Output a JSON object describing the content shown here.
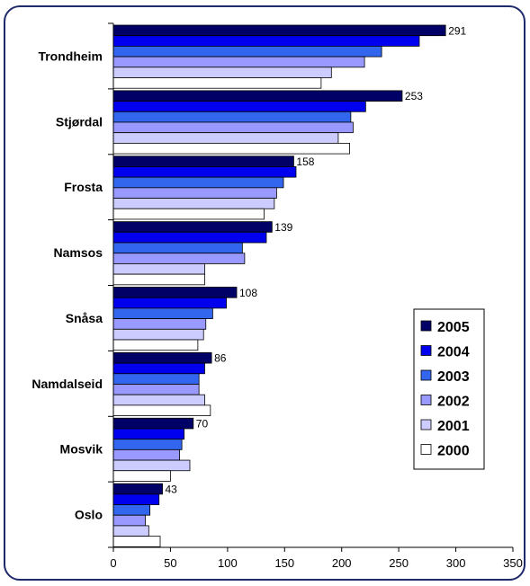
{
  "chart_data": {
    "type": "bar",
    "orientation": "horizontal",
    "categories": [
      "Trondheim",
      "Stjørdal",
      "Frosta",
      "Namsos",
      "Snåsa",
      "Namdalseid",
      "Mosvik",
      "Oslo"
    ],
    "series": [
      {
        "name": "2005",
        "color": "#000066",
        "values": [
          291,
          253,
          158,
          139,
          108,
          86,
          70,
          43
        ]
      },
      {
        "name": "2004",
        "color": "#0000ee",
        "values": [
          268,
          221,
          160,
          134,
          99,
          80,
          62,
          40
        ]
      },
      {
        "name": "2003",
        "color": "#3366ee",
        "values": [
          235,
          208,
          149,
          113,
          87,
          75,
          60,
          32
        ]
      },
      {
        "name": "2002",
        "color": "#9999ff",
        "values": [
          220,
          210,
          143,
          115,
          81,
          75,
          58,
          28
        ]
      },
      {
        "name": "2001",
        "color": "#ccccff",
        "values": [
          191,
          197,
          141,
          80,
          79,
          80,
          67,
          31
        ]
      },
      {
        "name": "2000",
        "color": "#ffffff",
        "values": [
          182,
          207,
          132,
          80,
          74,
          85,
          50,
          41
        ]
      }
    ],
    "data_labels": [
      291,
      253,
      158,
      139,
      108,
      86,
      70,
      43
    ],
    "xlim": [
      0,
      350
    ],
    "xticks": [
      "0",
      "50",
      "100",
      "150",
      "200",
      "250",
      "300",
      "350"
    ],
    "title": "",
    "xlabel": "",
    "ylabel": "",
    "grid": false,
    "legend_position": "right"
  }
}
